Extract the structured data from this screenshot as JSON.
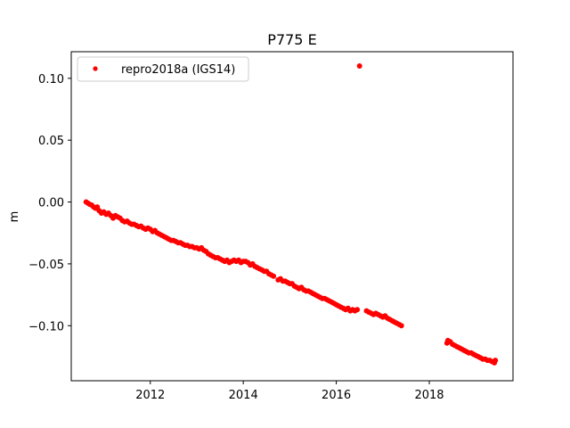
{
  "chart_data": {
    "type": "scatter",
    "title": "P775 E",
    "xlabel": "",
    "ylabel": "m",
    "xlim": [
      2010.3,
      2019.8
    ],
    "ylim": [
      -0.1445,
      0.1215
    ],
    "xticks": [
      2012,
      2014,
      2016,
      2018
    ],
    "xtick_labels": [
      "2012",
      "2014",
      "2016",
      "2018"
    ],
    "yticks": [
      0.1,
      0.05,
      0.0,
      -0.05,
      -0.1
    ],
    "ytick_labels": [
      "0.10",
      "0.05",
      "0.00",
      "−0.05",
      "−0.10"
    ],
    "legend": {
      "position": "top-left",
      "entries": [
        "repro2018a (IGS14)"
      ]
    },
    "grid": false,
    "marker_color": "#ff0000",
    "series": [
      {
        "name": "repro2018a (IGS14)",
        "points": [
          [
            2010.62,
            0.0
          ],
          [
            2010.66,
            -0.001
          ],
          [
            2010.7,
            -0.002
          ],
          [
            2010.74,
            -0.0025
          ],
          [
            2010.78,
            -0.004
          ],
          [
            2010.82,
            -0.005
          ],
          [
            2010.86,
            -0.004
          ],
          [
            2010.9,
            -0.007
          ],
          [
            2010.95,
            -0.009
          ],
          [
            2011.0,
            -0.008
          ],
          [
            2011.05,
            -0.01
          ],
          [
            2011.1,
            -0.009
          ],
          [
            2011.15,
            -0.011
          ],
          [
            2011.2,
            -0.013
          ],
          [
            2011.25,
            -0.011
          ],
          [
            2011.3,
            -0.012
          ],
          [
            2011.35,
            -0.013
          ],
          [
            2011.4,
            -0.015
          ],
          [
            2011.45,
            -0.016
          ],
          [
            2011.5,
            -0.0155
          ],
          [
            2011.55,
            -0.017
          ],
          [
            2011.6,
            -0.018
          ],
          [
            2011.65,
            -0.018
          ],
          [
            2011.7,
            -0.019
          ],
          [
            2011.75,
            -0.02
          ],
          [
            2011.8,
            -0.0195
          ],
          [
            2011.85,
            -0.021
          ],
          [
            2011.9,
            -0.022
          ],
          [
            2011.95,
            -0.021
          ],
          [
            2012.0,
            -0.022
          ],
          [
            2012.05,
            -0.024
          ],
          [
            2012.1,
            -0.023
          ],
          [
            2012.15,
            -0.025
          ],
          [
            2012.2,
            -0.026
          ],
          [
            2012.25,
            -0.027
          ],
          [
            2012.3,
            -0.028
          ],
          [
            2012.35,
            -0.029
          ],
          [
            2012.4,
            -0.03
          ],
          [
            2012.45,
            -0.031
          ],
          [
            2012.5,
            -0.031
          ],
          [
            2012.55,
            -0.032
          ],
          [
            2012.6,
            -0.033
          ],
          [
            2012.65,
            -0.033
          ],
          [
            2012.7,
            -0.034
          ],
          [
            2012.75,
            -0.035
          ],
          [
            2012.8,
            -0.035
          ],
          [
            2012.85,
            -0.036
          ],
          [
            2012.9,
            -0.036
          ],
          [
            2012.95,
            -0.037
          ],
          [
            2013.0,
            -0.037
          ],
          [
            2013.05,
            -0.038
          ],
          [
            2013.1,
            -0.037
          ],
          [
            2013.15,
            -0.039
          ],
          [
            2013.2,
            -0.04
          ],
          [
            2013.25,
            -0.042
          ],
          [
            2013.3,
            -0.043
          ],
          [
            2013.35,
            -0.044
          ],
          [
            2013.4,
            -0.045
          ],
          [
            2013.45,
            -0.045
          ],
          [
            2013.5,
            -0.046
          ],
          [
            2013.55,
            -0.047
          ],
          [
            2013.6,
            -0.048
          ],
          [
            2013.65,
            -0.047
          ],
          [
            2013.7,
            -0.049
          ],
          [
            2013.75,
            -0.048
          ],
          [
            2013.8,
            -0.047
          ],
          [
            2013.85,
            -0.048
          ],
          [
            2013.9,
            -0.047
          ],
          [
            2013.95,
            -0.049
          ],
          [
            2014.0,
            -0.048
          ],
          [
            2014.05,
            -0.048
          ],
          [
            2014.1,
            -0.049
          ],
          [
            2014.15,
            -0.051
          ],
          [
            2014.2,
            -0.05
          ],
          [
            2014.25,
            -0.052
          ],
          [
            2014.3,
            -0.053
          ],
          [
            2014.35,
            -0.054
          ],
          [
            2014.4,
            -0.055
          ],
          [
            2014.45,
            -0.056
          ],
          [
            2014.5,
            -0.056
          ],
          [
            2014.55,
            -0.058
          ],
          [
            2014.6,
            -0.059
          ],
          [
            2014.65,
            -0.06
          ],
          [
            2014.75,
            -0.063
          ],
          [
            2014.8,
            -0.062
          ],
          [
            2014.85,
            -0.064
          ],
          [
            2014.9,
            -0.064
          ],
          [
            2014.95,
            -0.065
          ],
          [
            2015.0,
            -0.066
          ],
          [
            2015.05,
            -0.066
          ],
          [
            2015.1,
            -0.068
          ],
          [
            2015.15,
            -0.069
          ],
          [
            2015.2,
            -0.07
          ],
          [
            2015.25,
            -0.069
          ],
          [
            2015.3,
            -0.071
          ],
          [
            2015.35,
            -0.072
          ],
          [
            2015.4,
            -0.072
          ],
          [
            2015.45,
            -0.073
          ],
          [
            2015.5,
            -0.074
          ],
          [
            2015.55,
            -0.075
          ],
          [
            2015.6,
            -0.076
          ],
          [
            2015.65,
            -0.077
          ],
          [
            2015.7,
            -0.078
          ],
          [
            2015.75,
            -0.078
          ],
          [
            2015.8,
            -0.079
          ],
          [
            2015.85,
            -0.08
          ],
          [
            2015.9,
            -0.081
          ],
          [
            2015.95,
            -0.082
          ],
          [
            2016.0,
            -0.083
          ],
          [
            2016.05,
            -0.084
          ],
          [
            2016.1,
            -0.085
          ],
          [
            2016.15,
            -0.086
          ],
          [
            2016.2,
            -0.087
          ],
          [
            2016.25,
            -0.086
          ],
          [
            2016.3,
            -0.088
          ],
          [
            2016.35,
            -0.087
          ],
          [
            2016.4,
            -0.088
          ],
          [
            2016.45,
            -0.087
          ],
          [
            2016.5,
            0.11
          ],
          [
            2016.65,
            -0.088
          ],
          [
            2016.7,
            -0.089
          ],
          [
            2016.75,
            -0.09
          ],
          [
            2016.8,
            -0.091
          ],
          [
            2016.85,
            -0.09
          ],
          [
            2016.9,
            -0.091
          ],
          [
            2016.95,
            -0.092
          ],
          [
            2017.0,
            -0.093
          ],
          [
            2017.05,
            -0.092
          ],
          [
            2017.1,
            -0.094
          ],
          [
            2017.15,
            -0.095
          ],
          [
            2017.2,
            -0.096
          ],
          [
            2017.25,
            -0.097
          ],
          [
            2017.3,
            -0.098
          ],
          [
            2017.35,
            -0.099
          ],
          [
            2017.4,
            -0.1
          ],
          [
            2018.38,
            -0.114
          ],
          [
            2018.4,
            -0.112
          ],
          [
            2018.45,
            -0.113
          ],
          [
            2018.5,
            -0.115
          ],
          [
            2018.55,
            -0.116
          ],
          [
            2018.6,
            -0.117
          ],
          [
            2018.65,
            -0.118
          ],
          [
            2018.7,
            -0.119
          ],
          [
            2018.75,
            -0.12
          ],
          [
            2018.8,
            -0.121
          ],
          [
            2018.85,
            -0.122
          ],
          [
            2018.9,
            -0.122
          ],
          [
            2018.95,
            -0.123
          ],
          [
            2019.0,
            -0.124
          ],
          [
            2019.05,
            -0.125
          ],
          [
            2019.1,
            -0.126
          ],
          [
            2019.15,
            -0.127
          ],
          [
            2019.2,
            -0.127
          ],
          [
            2019.25,
            -0.128
          ],
          [
            2019.3,
            -0.128
          ],
          [
            2019.35,
            -0.129
          ],
          [
            2019.4,
            -0.13
          ],
          [
            2019.42,
            -0.128
          ]
        ]
      }
    ]
  }
}
